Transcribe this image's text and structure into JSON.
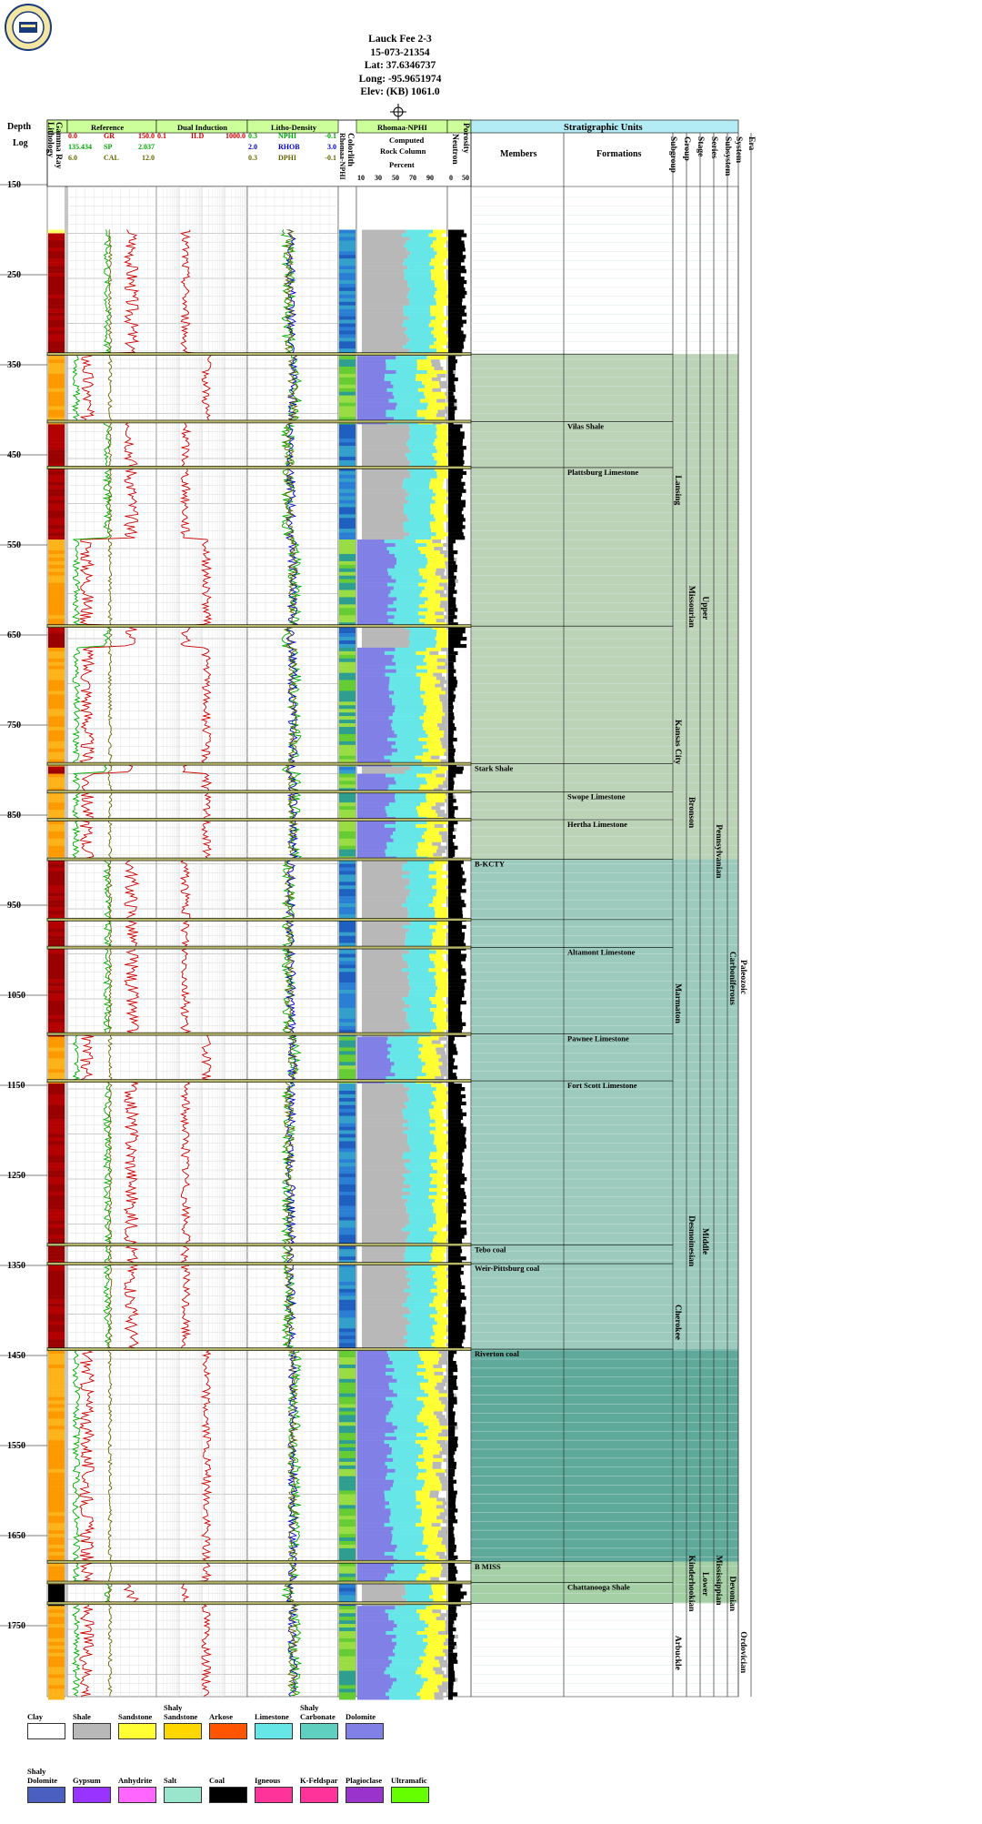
{
  "header": {
    "well_name": "Lauck Fee 2-3",
    "api": "15-073-21354",
    "lat": "Lat: 37.6346737",
    "long": "Long: -95.9651974",
    "elev": "Elev: (KB) 1061.0"
  },
  "tracks": {
    "depth_title": "Depth",
    "depth_subtitle": "Log",
    "gamma_ray": "Gamma Ray",
    "lithology": "Lithology",
    "reference": "Reference",
    "dual_induction": "Dual Induction",
    "litho_density": "Litho-Density",
    "colorlith": "Colorlith",
    "rhomaa_nphi_vert": "Rhomaa-NPHI",
    "rhomaa_nphi": "Rhomaa-NPHI",
    "computed": "Computed",
    "rock_column": "Rock Column",
    "percent": "Percent",
    "neutron": "Neutron",
    "porosity": "Porosity",
    "strat_units": "Stratigraphic Units",
    "members": "Members",
    "formations": "Formations",
    "rank_cols": [
      "Subgroup",
      "Group",
      "Stage",
      "Series",
      "Subsystem",
      "System",
      "Era"
    ]
  },
  "curves": {
    "gr": {
      "name": "GR",
      "min": "0.0",
      "max": "150.0",
      "color": "#cc0000"
    },
    "sp": {
      "name": "SP",
      "min": "135.434",
      "max": "2.037",
      "color": "#00aa00"
    },
    "cal": {
      "name": "CAL",
      "min": "6.0",
      "max": "12.0",
      "color": "#666600"
    },
    "ild": {
      "name": "ILD",
      "min": "0.1",
      "max": "1000.0",
      "color": "#cc0000"
    },
    "nphi": {
      "name": "NPHI",
      "min": "0.3",
      "max": "-0.1",
      "color": "#00aa00"
    },
    "rhob": {
      "name": "RHOB",
      "min": "2.0",
      "max": "3.0",
      "color": "#0000cc"
    },
    "dphi": {
      "name": "DPHI",
      "min": "0.3",
      "max": "-0.1",
      "color": "#666600"
    }
  },
  "rock_scale": [
    "10",
    "30",
    "50",
    "70",
    "90"
  ],
  "neutron_scale": [
    "0",
    "50"
  ],
  "chart_data": {
    "type": "well-log",
    "depth_ticks": [
      150,
      250,
      350,
      450,
      550,
      650,
      750,
      850,
      950,
      1050,
      1150,
      1250,
      1350,
      1450,
      1550,
      1650,
      1750
    ],
    "depth_range": [
      150,
      1830
    ],
    "boundaries": [
      334,
      409,
      460,
      636,
      789,
      820,
      851,
      895,
      962,
      993,
      1089,
      1141,
      1323,
      1344,
      1439,
      1675,
      1698,
      1721
    ],
    "members": [
      {
        "name": "Stark Shale",
        "depth": 789
      },
      {
        "name": "B-KCTY",
        "depth": 895
      },
      {
        "name": "Tebo coal",
        "depth": 1323
      },
      {
        "name": "Weir-Pittsburg coal",
        "depth": 1344
      },
      {
        "name": "Riverton coal",
        "depth": 1439
      },
      {
        "name": "B MISS",
        "depth": 1675
      }
    ],
    "formations": [
      {
        "name": "Vilas Shale",
        "depth": 409
      },
      {
        "name": "Plattsburg Limestone",
        "depth": 460
      },
      {
        "name": "Swope Limestone",
        "depth": 820
      },
      {
        "name": "Hertha Limestone",
        "depth": 851
      },
      {
        "name": "Altamont Limestone",
        "depth": 993
      },
      {
        "name": "Pawnee Limestone",
        "depth": 1089
      },
      {
        "name": "Fort Scott Limestone",
        "depth": 1141
      },
      {
        "name": "Chattanooga Shale",
        "depth": 1698
      }
    ],
    "rank_labels": [
      {
        "col": 0,
        "name": "Lansing",
        "top": 334,
        "bottom": 636
      },
      {
        "col": 0,
        "name": "Kansas City",
        "top": 636,
        "bottom": 895
      },
      {
        "col": 1,
        "name": "Missourian",
        "top": 334,
        "bottom": 895
      },
      {
        "col": 0,
        "name": "Marmaton",
        "top": 962,
        "bottom": 1141
      },
      {
        "col": 0,
        "name": "Cherokee",
        "top": 1141,
        "bottom": 1675
      },
      {
        "col": 0,
        "name": "Arbuckle",
        "top": 1721,
        "bottom": 1830
      },
      {
        "col": 1,
        "name": "Bronson",
        "top": 789,
        "bottom": 895
      },
      {
        "col": 2,
        "name": "Upper",
        "top": 334,
        "bottom": 895
      },
      {
        "col": 1,
        "name": "Desmoinesian",
        "top": 962,
        "bottom": 1675
      },
      {
        "col": 2,
        "name": "Middle",
        "top": 962,
        "bottom": 1675
      },
      {
        "col": 1,
        "name": "Kinderhookian",
        "top": 1675,
        "bottom": 1721
      },
      {
        "col": 2,
        "name": "Lower",
        "top": 1675,
        "bottom": 1721
      },
      {
        "col": 3,
        "name": "Pennsylvanian",
        "top": 334,
        "bottom": 1439
      },
      {
        "col": 3,
        "name": "Mississippian",
        "top": 1675,
        "bottom": 1721
      },
      {
        "col": 4,
        "name": "Carboniferous",
        "top": 334,
        "bottom": 1721
      },
      {
        "col": 4,
        "name": "Devonian",
        "top": 1698,
        "bottom": 1721
      },
      {
        "col": 5,
        "name": "Paleozoic",
        "top": 334,
        "bottom": 1721
      },
      {
        "col": 5,
        "name": "Ordovician",
        "top": 1721,
        "bottom": 1830
      }
    ],
    "strat_shading": [
      {
        "top": 334,
        "bottom": 895,
        "color": "#bdd3b8"
      },
      {
        "top": 895,
        "bottom": 1439,
        "color": "#9ccbbe"
      },
      {
        "top": 1439,
        "bottom": 1675,
        "color": "#5ea99a"
      },
      {
        "top": 1675,
        "bottom": 1721,
        "color": "#a5d0a5"
      }
    ],
    "lithology_classes": [
      "Clay",
      "Shale",
      "Sandstone",
      "Shaly Sandstone",
      "Arkose",
      "Limestone",
      "Shaly Carbonate",
      "Dolomite",
      "Shaly Dolomite",
      "Gypsum",
      "Anhydrite",
      "Salt",
      "Coal",
      "Igneous",
      "K-Feldspar",
      "Plagioclase",
      "Ultramafic"
    ]
  },
  "legend": [
    {
      "label": "Clay",
      "fill": "#ffffff",
      "row": 0
    },
    {
      "label": "Shale",
      "fill": "#b8b8b8",
      "row": 0
    },
    {
      "label": "Sandstone",
      "fill": "#ffff33",
      "row": 0
    },
    {
      "label": "Shaly Sandstone",
      "fill": "#ffd700",
      "row": 0
    },
    {
      "label": "Arkose",
      "fill": "#ff5500",
      "row": 0
    },
    {
      "label": "Limestone",
      "fill": "#66e6e6",
      "row": 0
    },
    {
      "label": "Shaly Carbonate",
      "fill": "#5fcfc0",
      "row": 0
    },
    {
      "label": "Dolomite",
      "fill": "#8080e6",
      "row": 0
    },
    {
      "label": "Shaly Dolomite",
      "fill": "#4a5fc0",
      "row": 1
    },
    {
      "label": "Gypsum",
      "fill": "#9933ff",
      "row": 1
    },
    {
      "label": "Anhydrite",
      "fill": "#ff66ff",
      "row": 1
    },
    {
      "label": "Salt",
      "fill": "#99e6cc",
      "row": 1
    },
    {
      "label": "Coal",
      "fill": "#000000",
      "row": 1
    },
    {
      "label": "Igneous",
      "fill": "#ff3399",
      "row": 1
    },
    {
      "label": "K-Feldspar",
      "fill": "#ff3399",
      "row": 1
    },
    {
      "label": "Plagioclase",
      "fill": "#9933cc",
      "row": 1
    },
    {
      "label": "Ultramafic",
      "fill": "#66ff00",
      "row": 1
    }
  ]
}
